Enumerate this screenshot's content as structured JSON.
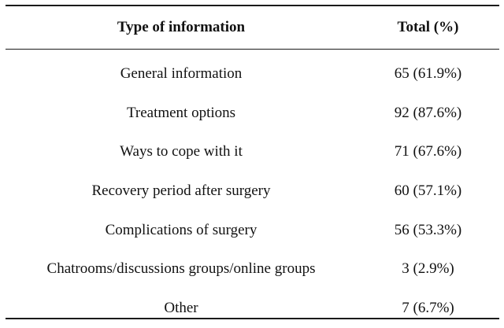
{
  "table": {
    "headers": [
      "Type of information",
      "Total (%)"
    ],
    "rows": [
      {
        "type": "General information",
        "total": "65 (61.9%)"
      },
      {
        "type": "Treatment options",
        "total": "92 (87.6%)"
      },
      {
        "type": "Ways to cope with it",
        "total": "71 (67.6%)"
      },
      {
        "type": "Recovery period after surgery",
        "total": "60 (57.1%)"
      },
      {
        "type": "Complications of surgery",
        "total": "56 (53.3%)"
      },
      {
        "type": "Chatrooms/discussions groups/online groups",
        "total": "3 (2.9%)"
      },
      {
        "type": "Other",
        "total": "7 (6.7%)"
      }
    ]
  }
}
